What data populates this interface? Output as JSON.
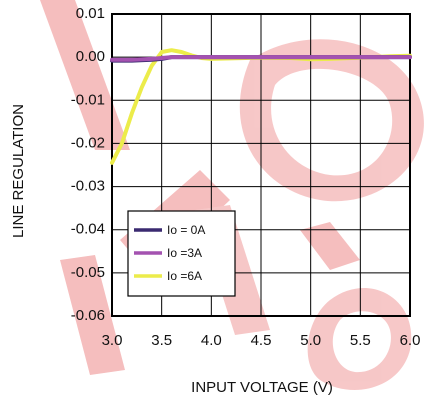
{
  "chart_data": {
    "type": "line",
    "xlabel": "INPUT VOLTAGE (V)",
    "ylabel": "LINE REGULATION",
    "xlim": [
      3.0,
      6.0
    ],
    "ylim": [
      -0.06,
      0.01
    ],
    "x_ticks": [
      3.0,
      3.5,
      4.0,
      4.5,
      5.0,
      5.5,
      6.0
    ],
    "x_tick_labels": [
      "3.0",
      "3.5",
      "4.0",
      "4.5",
      "5.0",
      "5.5",
      "6.0"
    ],
    "y_ticks": [
      0.01,
      0.0,
      -0.01,
      -0.02,
      -0.03,
      -0.04,
      -0.05,
      -0.06
    ],
    "y_tick_labels": [
      "0.01",
      "0.00",
      "-0.01",
      "-0.02",
      "-0.03",
      "-0.04",
      "-0.05",
      "-0.06"
    ],
    "grid": true,
    "legend_position": "bottom-left",
    "series": [
      {
        "name": "Io = 0A",
        "color": "#3a2a70",
        "x": [
          3.0,
          3.2,
          3.4,
          3.5,
          3.6,
          4.0,
          4.5,
          5.0,
          5.5,
          6.0
        ],
        "y": [
          -0.0008,
          -0.0008,
          -0.0006,
          -0.0004,
          0.0,
          0.0,
          0.0,
          0.0,
          0.0,
          0.0
        ]
      },
      {
        "name": "Io =3A",
        "color": "#a452b0",
        "x": [
          3.0,
          3.2,
          3.4,
          3.5,
          3.6,
          4.0,
          4.5,
          5.0,
          5.5,
          6.0
        ],
        "y": [
          -0.0006,
          -0.0006,
          -0.0004,
          -0.0002,
          0.0,
          0.0,
          0.0,
          0.0,
          0.0,
          0.0
        ]
      },
      {
        "name": "Io =6A",
        "color": "#ecec4a",
        "x": [
          3.0,
          3.1,
          3.2,
          3.3,
          3.4,
          3.5,
          3.6,
          3.7,
          3.8,
          3.9,
          4.0,
          4.2,
          4.5,
          4.8,
          5.0,
          5.2,
          5.5,
          5.8,
          6.0
        ],
        "y": [
          -0.0245,
          -0.02,
          -0.013,
          -0.007,
          -0.002,
          0.0012,
          0.0016,
          0.0012,
          0.0004,
          -0.0002,
          -0.0004,
          -0.0003,
          -0.0001,
          -0.0002,
          -0.0005,
          -0.0004,
          -0.0001,
          0.0002,
          0.0003
        ]
      }
    ]
  }
}
